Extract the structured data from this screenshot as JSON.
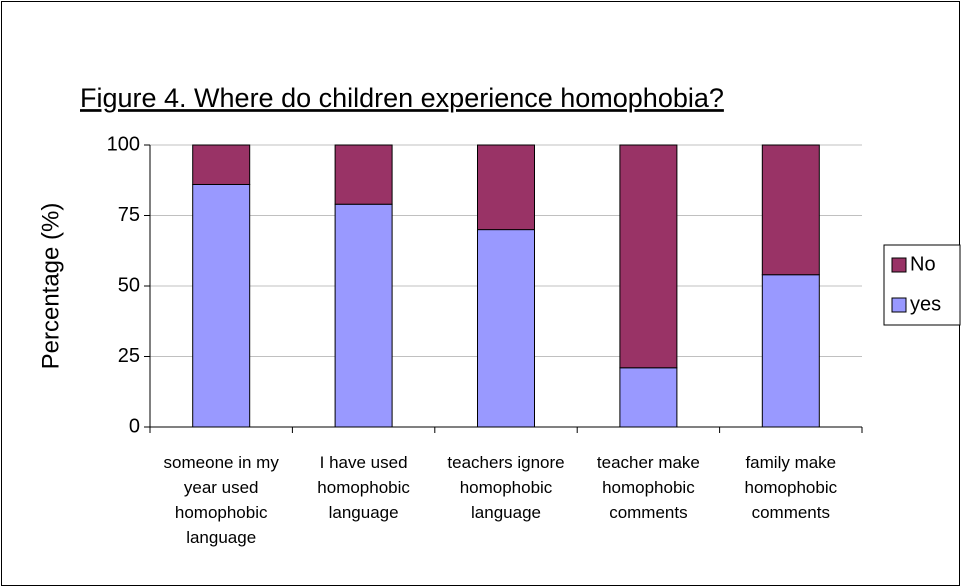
{
  "chart_data": {
    "type": "stacked_bar",
    "title": "Figure 4. Where do children experience homophobia?",
    "y_label": "Percentage (%)",
    "categories": [
      "someone in my year used homophobic language",
      "I have used homophobic language",
      "teachers ignore homophobic language",
      "teacher make homophobic comments",
      "family make homophobic comments"
    ],
    "series": [
      {
        "name": "yes",
        "color": "#9999ff",
        "values": [
          86,
          79,
          70,
          21,
          54
        ]
      },
      {
        "name": "No",
        "color": "#993366",
        "values": [
          14,
          21,
          30,
          79,
          46
        ]
      }
    ],
    "ylim": [
      0,
      100
    ],
    "yticks": [
      0,
      25,
      50,
      75,
      100
    ],
    "grid": true,
    "legend": "right"
  }
}
